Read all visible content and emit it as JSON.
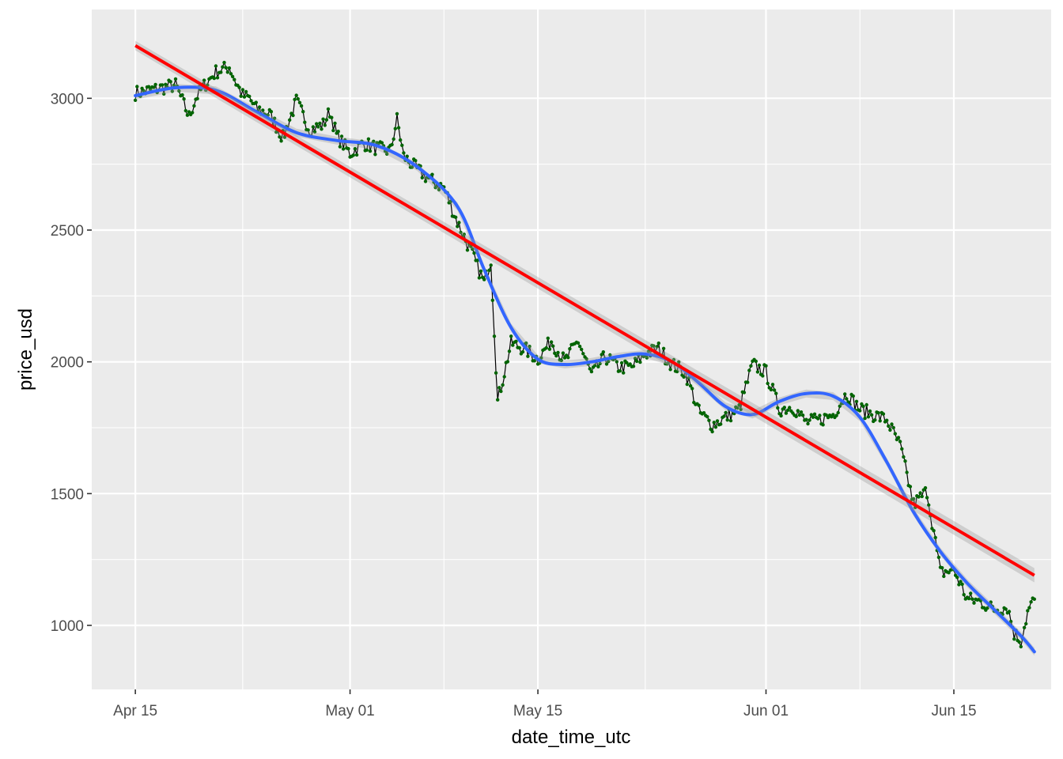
{
  "chart_data": {
    "type": "line",
    "xlabel": "date_time_utc",
    "ylabel": "price_usd",
    "x_tick_labels": [
      "Apr 15",
      "May 01",
      "May 15",
      "Jun 01",
      "Jun 15"
    ],
    "x_tick_dates": [
      "2022-04-15",
      "2022-05-01",
      "2022-05-15",
      "2022-06-01",
      "2022-06-15"
    ],
    "x_minor_dates": [
      "2022-04-23",
      "2022-05-08",
      "2022-05-23",
      "2022-06-08"
    ],
    "y_ticks": [
      1000,
      1500,
      2000,
      2500,
      3000
    ],
    "y_minor": [
      1250,
      1750,
      2250,
      2750
    ],
    "xlim": [
      "2022-04-11T18:00",
      "2022-06-22T06:00"
    ],
    "ylim": [
      757,
      3337
    ],
    "grid": true,
    "panel_color": "#ebebeb",
    "series": [
      {
        "kind": "price",
        "line_color": "#000000",
        "point_color": "#006400",
        "x": [
          "2022-04-15T00:00",
          "2022-04-16T00:00",
          "2022-04-17T00:00",
          "2022-04-18T00:00",
          "2022-04-19T00:00",
          "2022-04-19T12:00",
          "2022-04-20T00:00",
          "2022-04-21T00:00",
          "2022-04-22T00:00",
          "2022-04-22T12:00",
          "2022-04-23T00:00",
          "2022-04-23T12:00",
          "2022-04-24T00:00",
          "2022-04-25T00:00",
          "2022-04-26T00:00",
          "2022-04-27T00:00",
          "2022-04-28T00:00",
          "2022-04-29T00:00",
          "2022-04-29T12:00",
          "2022-04-30T00:00",
          "2022-05-01T00:00",
          "2022-05-02T00:00",
          "2022-05-03T00:00",
          "2022-05-04T00:00",
          "2022-05-04T12:00",
          "2022-05-05T00:00",
          "2022-05-06T00:00",
          "2022-05-07T00:00",
          "2022-05-08T00:00",
          "2022-05-09T00:00",
          "2022-05-10T00:00",
          "2022-05-11T00:00",
          "2022-05-11T12:00",
          "2022-05-12T00:00",
          "2022-05-12T12:00",
          "2022-05-13T00:00",
          "2022-05-14T00:00",
          "2022-05-15T00:00",
          "2022-05-16T00:00",
          "2022-05-17T00:00",
          "2022-05-18T00:00",
          "2022-05-19T00:00",
          "2022-05-20T00:00",
          "2022-05-21T00:00",
          "2022-05-22T00:00",
          "2022-05-23T00:00",
          "2022-05-24T00:00",
          "2022-05-25T00:00",
          "2022-05-26T00:00",
          "2022-05-27T00:00",
          "2022-05-28T00:00",
          "2022-05-29T00:00",
          "2022-05-30T00:00",
          "2022-05-31T00:00",
          "2022-06-01T00:00",
          "2022-06-02T00:00",
          "2022-06-03T00:00",
          "2022-06-04T00:00",
          "2022-06-05T00:00",
          "2022-06-06T00:00",
          "2022-06-07T00:00",
          "2022-06-08T00:00",
          "2022-06-09T00:00",
          "2022-06-10T00:00",
          "2022-06-11T00:00",
          "2022-06-12T00:00",
          "2022-06-13T00:00",
          "2022-06-14T00:00",
          "2022-06-15T00:00",
          "2022-06-16T00:00",
          "2022-06-17T00:00",
          "2022-06-18T00:00",
          "2022-06-19T00:00",
          "2022-06-19T12:00",
          "2022-06-20T00:00",
          "2022-06-20T12:00",
          "2022-06-21T00:00"
        ],
        "y": [
          3020,
          3030,
          3040,
          3050,
          2930,
          3000,
          3040,
          3100,
          3120,
          3060,
          3010,
          3000,
          2960,
          2940,
          2850,
          2990,
          2880,
          2900,
          2950,
          2860,
          2790,
          2830,
          2810,
          2800,
          2920,
          2780,
          2730,
          2690,
          2660,
          2530,
          2420,
          2300,
          2390,
          1850,
          1960,
          2070,
          2050,
          2010,
          2080,
          2000,
          2080,
          1950,
          2020,
          1980,
          1980,
          2030,
          2050,
          1990,
          1960,
          1810,
          1760,
          1790,
          1820,
          1990,
          1960,
          1820,
          1830,
          1770,
          1780,
          1800,
          1880,
          1820,
          1800,
          1780,
          1680,
          1460,
          1510,
          1200,
          1210,
          1100,
          1090,
          1060,
          1070,
          970,
          940,
          1050,
          1100
        ]
      },
      {
        "kind": "smooth",
        "color": "#3366ff",
        "x": [
          "2022-04-15T00:00",
          "2022-04-18T00:00",
          "2022-04-21T00:00",
          "2022-04-24T00:00",
          "2022-04-27T00:00",
          "2022-04-30T00:00",
          "2022-05-03T00:00",
          "2022-05-06T00:00",
          "2022-05-09T00:00",
          "2022-05-11T00:00",
          "2022-05-13T00:00",
          "2022-05-15T00:00",
          "2022-05-17T00:00",
          "2022-05-19T00:00",
          "2022-05-21T00:00",
          "2022-05-23T00:00",
          "2022-05-25T00:00",
          "2022-05-27T00:00",
          "2022-05-29T00:00",
          "2022-05-31T00:00",
          "2022-06-02T00:00",
          "2022-06-04T00:00",
          "2022-06-06T00:00",
          "2022-06-08T00:00",
          "2022-06-10T00:00",
          "2022-06-12T00:00",
          "2022-06-14T00:00",
          "2022-06-16T00:00",
          "2022-06-18T00:00",
          "2022-06-20T00:00",
          "2022-06-21T00:00"
        ],
        "y": [
          3010,
          3040,
          3030,
          2950,
          2870,
          2840,
          2820,
          2740,
          2590,
          2350,
          2130,
          2010,
          1990,
          2000,
          2020,
          2030,
          2000,
          1920,
          1830,
          1800,
          1850,
          1880,
          1870,
          1790,
          1620,
          1430,
          1280,
          1160,
          1060,
          960,
          900
        ]
      },
      {
        "kind": "linear",
        "color": "#ff0000",
        "x": [
          "2022-04-15T00:00",
          "2022-06-21T00:00"
        ],
        "y": [
          3200,
          1190
        ]
      }
    ]
  }
}
